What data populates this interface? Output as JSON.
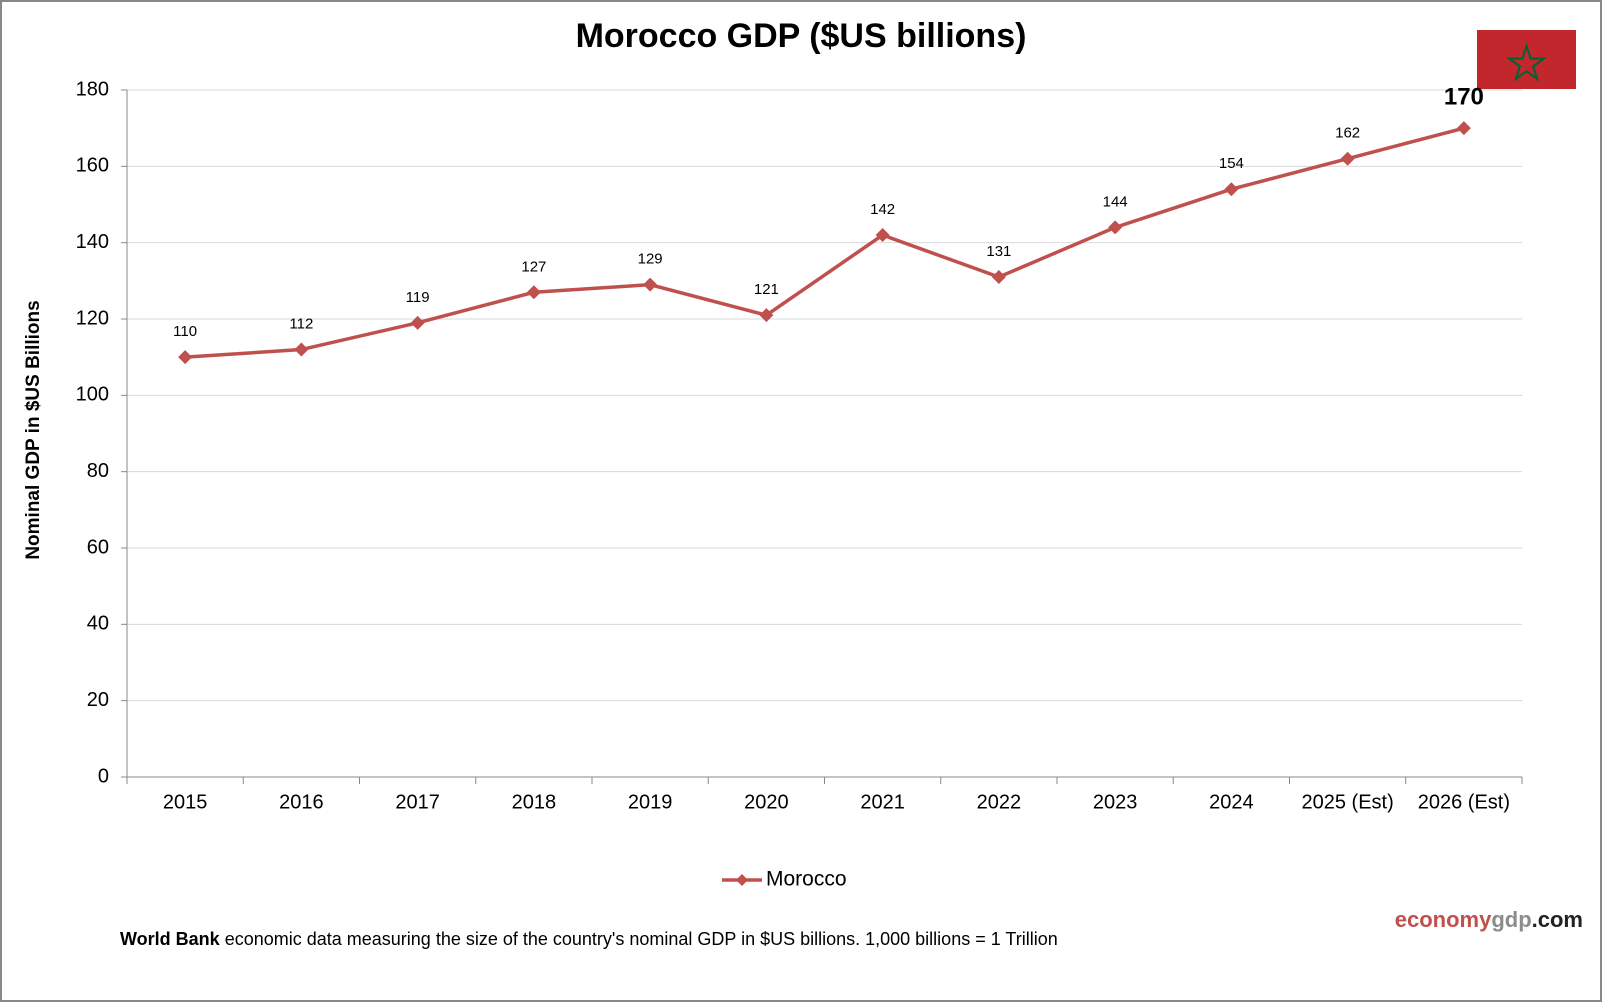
{
  "chart_data": {
    "type": "line",
    "title": "Morocco GDP ($US billions)",
    "y_label": "Nominal GDP in $US Billions",
    "categories": [
      "2015",
      "2016",
      "2017",
      "2018",
      "2019",
      "2020",
      "2021",
      "2022",
      "2023",
      "2024",
      "2025 (Est)",
      "2026 (Est)"
    ],
    "series": [
      {
        "name": "Morocco",
        "color": "#c0504d",
        "values": [
          110,
          112,
          119,
          127,
          129,
          121,
          142,
          131,
          144,
          154,
          162,
          170
        ]
      }
    ],
    "ylim": [
      0,
      180
    ],
    "yticks": [
      0,
      20,
      40,
      60,
      80,
      100,
      120,
      140,
      160,
      180
    ],
    "grid": true,
    "legend": "bottom"
  },
  "footer": {
    "source": "World Bank",
    "text": "economic data  measuring  the size of the country's nominal  GDP in $US billions.  1,000 billions = 1 Trillion"
  },
  "brand": [
    "economy",
    "gdp",
    ".com"
  ]
}
